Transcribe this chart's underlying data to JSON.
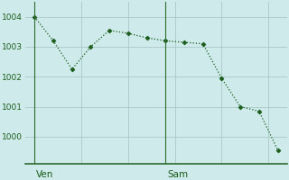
{
  "x_values": [
    0,
    1,
    2,
    3,
    4,
    5,
    6,
    7,
    8,
    9,
    10,
    11,
    12,
    13
  ],
  "y_values": [
    1004.0,
    1003.2,
    1002.25,
    1003.0,
    1003.55,
    1003.45,
    1003.3,
    1003.2,
    1003.15,
    1003.1,
    1001.95,
    1001.0,
    1000.85,
    999.55
  ],
  "ven_x": 0,
  "sam_x": 7,
  "ven_label": "Ven",
  "sam_label": "Sam",
  "line_color": "#1a5c1a",
  "marker": "D",
  "marker_size": 2.5,
  "bg_color": "#ceeaea",
  "grid_color": "#aac8c8",
  "axis_color": "#1a5c1a",
  "spine_color": "#2d6b2d",
  "yticks": [
    1000,
    1001,
    1002,
    1003,
    1004
  ],
  "ylim": [
    999.1,
    1004.5
  ],
  "xlim": [
    -0.5,
    13.5
  ],
  "tick_fontsize": 6.5,
  "label_fontsize": 7.5
}
